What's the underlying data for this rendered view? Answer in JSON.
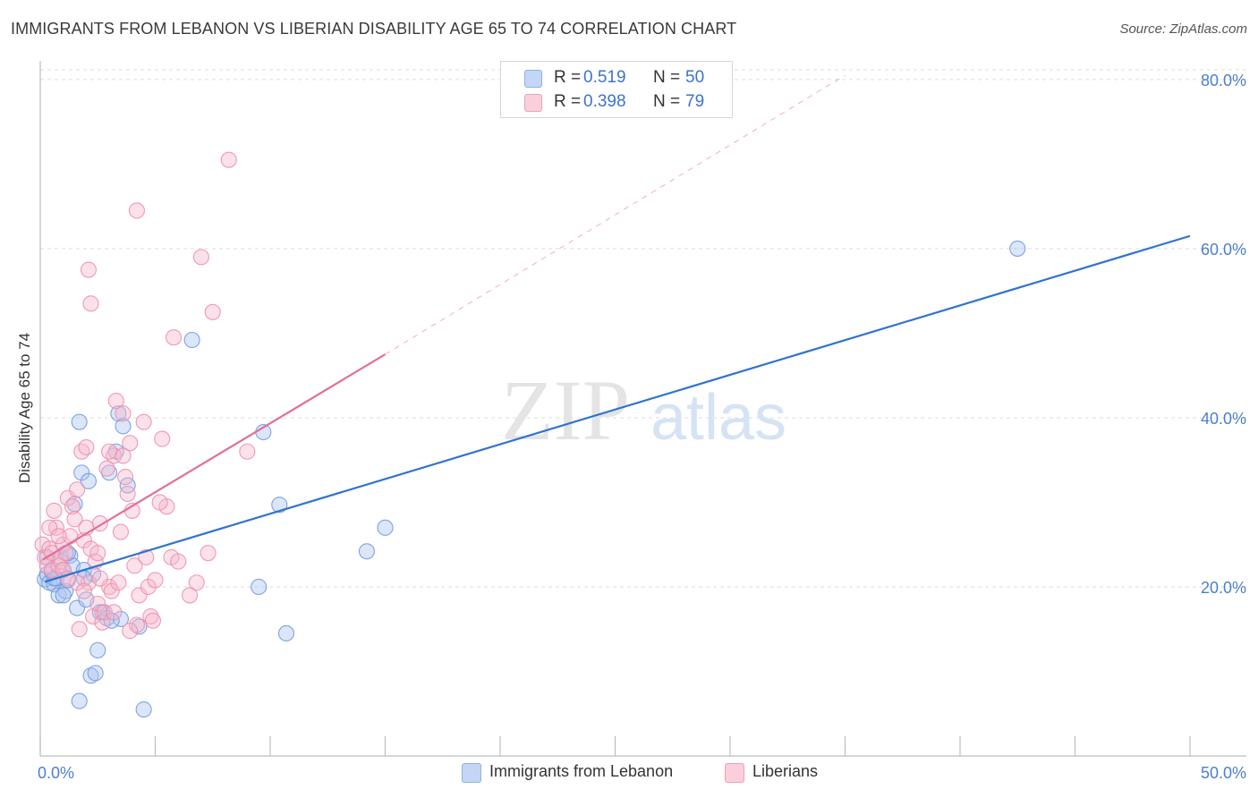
{
  "title": "IMMIGRANTS FROM LEBANON VS LIBERIAN DISABILITY AGE 65 TO 74 CORRELATION CHART",
  "source": "Source: ZipAtlas.com",
  "watermark": {
    "zip": "ZIP",
    "atlas": "atlas"
  },
  "legend": {
    "rows": [
      {
        "r_label": "R =",
        "r_value": "0.519",
        "n_label": "N =",
        "n_value": "50",
        "color": "#a9c4f0"
      },
      {
        "r_label": "R =",
        "r_value": "0.398",
        "n_label": "N =",
        "n_value": "79",
        "color": "#f6b8cb"
      }
    ]
  },
  "bottom_legend": [
    {
      "label": "Immigrants from Lebanon",
      "color": "#a9c4f0"
    },
    {
      "label": "Liberians",
      "color": "#f6b8cb"
    }
  ],
  "chart_data": {
    "type": "scatter",
    "title": "IMMIGRANTS FROM LEBANON VS LIBERIAN DISABILITY AGE 65 TO 74 CORRELATION CHART",
    "xlabel": "",
    "ylabel": "Disability Age 65 to 74",
    "xlim": [
      0,
      50
    ],
    "ylim": [
      0,
      82
    ],
    "x_tick_labels": [
      "0.0%",
      "50.0%"
    ],
    "y_ticks": [
      20,
      40,
      60,
      80
    ],
    "y_tick_labels": [
      "20.0%",
      "40.0%",
      "60.0%",
      "80.0%"
    ],
    "series": [
      {
        "name": "Immigrants from Lebanon",
        "color": "#a9c4f0",
        "stroke": "#6f9be0",
        "trend_color": "#2f73d0",
        "trend": {
          "x0": 0.2,
          "y0": 20.6,
          "x1": 50,
          "y1": 61.5
        },
        "points": [
          [
            0.2,
            20.9
          ],
          [
            0.3,
            21.5
          ],
          [
            0.4,
            20.5
          ],
          [
            0.5,
            21.8
          ],
          [
            0.6,
            20.3
          ],
          [
            0.7,
            21.0
          ],
          [
            0.8,
            19.0
          ],
          [
            0.9,
            23.5
          ],
          [
            1.0,
            22.0
          ],
          [
            1.1,
            19.5
          ],
          [
            1.2,
            20.8
          ],
          [
            1.3,
            23.7
          ],
          [
            1.4,
            22.5
          ],
          [
            1.5,
            29.8
          ],
          [
            1.6,
            17.5
          ],
          [
            1.7,
            6.5
          ],
          [
            1.7,
            39.5
          ],
          [
            1.8,
            33.5
          ],
          [
            1.9,
            22.0
          ],
          [
            2.0,
            18.5
          ],
          [
            2.1,
            32.5
          ],
          [
            2.2,
            9.5
          ],
          [
            2.3,
            21.5
          ],
          [
            2.4,
            9.8
          ],
          [
            2.5,
            12.5
          ],
          [
            2.7,
            17.0
          ],
          [
            2.9,
            16.3
          ],
          [
            3.0,
            33.5
          ],
          [
            3.3,
            36.0
          ],
          [
            3.4,
            40.5
          ],
          [
            3.5,
            16.2
          ],
          [
            3.6,
            39.0
          ],
          [
            3.8,
            32.0
          ],
          [
            4.3,
            15.3
          ],
          [
            4.5,
            5.5
          ],
          [
            6.6,
            49.2
          ],
          [
            9.5,
            20.0
          ],
          [
            9.7,
            38.3
          ],
          [
            10.4,
            29.7
          ],
          [
            10.7,
            14.5
          ],
          [
            14.2,
            24.2
          ],
          [
            15.0,
            27.0
          ],
          [
            42.5,
            60.0
          ],
          [
            0.3,
            23.5
          ],
          [
            0.6,
            21.0
          ],
          [
            1.0,
            19.0
          ],
          [
            1.2,
            24.0
          ],
          [
            1.9,
            21.0
          ],
          [
            2.6,
            17.0
          ],
          [
            3.1,
            16.0
          ]
        ]
      },
      {
        "name": "Liberians",
        "color": "#f6b8cb",
        "stroke": "#ee8fae",
        "trend_color": "#e07096",
        "trend": {
          "x0": 0.1,
          "y0": 23.2,
          "x1": 15.0,
          "y1": 47.5
        },
        "trend_ext": {
          "x0": 15.0,
          "y0": 47.5,
          "x1": 35.0,
          "y1": 80.5
        },
        "points": [
          [
            0.1,
            25.0
          ],
          [
            0.2,
            23.5
          ],
          [
            0.3,
            22.5
          ],
          [
            0.4,
            24.5
          ],
          [
            0.5,
            22.0
          ],
          [
            0.6,
            29.0
          ],
          [
            0.7,
            27.0
          ],
          [
            0.8,
            22.5
          ],
          [
            0.9,
            23.0
          ],
          [
            1.0,
            25.0
          ],
          [
            1.1,
            24.0
          ],
          [
            1.2,
            30.5
          ],
          [
            1.3,
            26.0
          ],
          [
            1.4,
            29.5
          ],
          [
            1.5,
            28.0
          ],
          [
            1.6,
            31.5
          ],
          [
            1.7,
            15.0
          ],
          [
            1.8,
            36.0
          ],
          [
            1.9,
            25.5
          ],
          [
            2.0,
            27.0
          ],
          [
            2.1,
            20.5
          ],
          [
            2.2,
            24.5
          ],
          [
            2.3,
            16.5
          ],
          [
            2.4,
            23.0
          ],
          [
            2.5,
            18.0
          ],
          [
            2.6,
            27.5
          ],
          [
            2.7,
            15.8
          ],
          [
            2.8,
            17.0
          ],
          [
            2.9,
            34.0
          ],
          [
            3.0,
            20.0
          ],
          [
            3.1,
            19.5
          ],
          [
            3.2,
            35.5
          ],
          [
            3.3,
            42.0
          ],
          [
            3.4,
            20.5
          ],
          [
            3.5,
            26.5
          ],
          [
            3.6,
            40.5
          ],
          [
            3.7,
            33.0
          ],
          [
            3.8,
            31.0
          ],
          [
            3.9,
            37.0
          ],
          [
            4.0,
            29.0
          ],
          [
            4.1,
            22.5
          ],
          [
            4.2,
            15.5
          ],
          [
            4.3,
            19.0
          ],
          [
            4.5,
            39.5
          ],
          [
            4.6,
            23.5
          ],
          [
            4.7,
            20.0
          ],
          [
            4.8,
            16.5
          ],
          [
            5.0,
            20.8
          ],
          [
            5.3,
            37.5
          ],
          [
            5.5,
            29.5
          ],
          [
            5.7,
            23.5
          ],
          [
            5.8,
            49.5
          ],
          [
            7.3,
            24.0
          ],
          [
            7.5,
            52.5
          ],
          [
            8.2,
            70.5
          ],
          [
            9.0,
            36.0
          ],
          [
            2.1,
            57.5
          ],
          [
            2.2,
            53.5
          ],
          [
            4.2,
            64.5
          ],
          [
            7.0,
            59.0
          ],
          [
            2.0,
            36.5
          ],
          [
            3.0,
            36.0
          ],
          [
            3.6,
            35.5
          ],
          [
            0.4,
            27.0
          ],
          [
            0.5,
            24.0
          ],
          [
            1.0,
            22.0
          ],
          [
            1.6,
            20.5
          ],
          [
            2.5,
            24.0
          ],
          [
            1.2,
            21.0
          ],
          [
            0.8,
            26.0
          ],
          [
            1.9,
            19.5
          ],
          [
            2.6,
            21.0
          ],
          [
            3.2,
            17.0
          ],
          [
            3.9,
            14.8
          ],
          [
            4.9,
            16.0
          ],
          [
            6.0,
            23.0
          ],
          [
            6.8,
            20.5
          ],
          [
            5.2,
            30.0
          ],
          [
            6.5,
            19.0
          ]
        ]
      }
    ]
  }
}
